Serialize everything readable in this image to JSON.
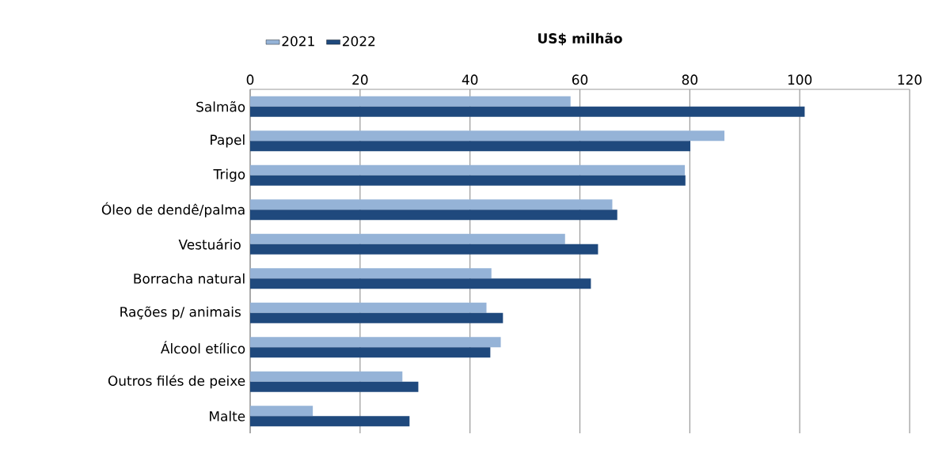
{
  "chart_data": {
    "type": "bar",
    "orientation": "horizontal",
    "xlabel": "US$ milhão",
    "categories": [
      "Salmão",
      "Papel",
      "Trigo",
      "Óleo de dendê/palma",
      "Vestuário ",
      "Borracha natural",
      "Rações p/ animais ",
      "Álcool etílico",
      "Outros filés de peixe",
      "Malte"
    ],
    "series": [
      {
        "name": "2021",
        "color": "#95b3d7",
        "values": [
          58.3,
          86.3,
          79.1,
          65.9,
          57.3,
          43.9,
          43.0,
          45.6,
          27.7,
          11.4
        ]
      },
      {
        "name": "2022",
        "color": "#1f497d",
        "values": [
          100.9,
          80.1,
          79.2,
          66.8,
          63.3,
          62.0,
          46.0,
          43.7,
          30.6,
          29.0
        ]
      }
    ],
    "xlim": [
      0,
      120
    ],
    "xticks": [
      0,
      20,
      40,
      60,
      80,
      100,
      120
    ],
    "grid": "x",
    "legend": "top left"
  }
}
